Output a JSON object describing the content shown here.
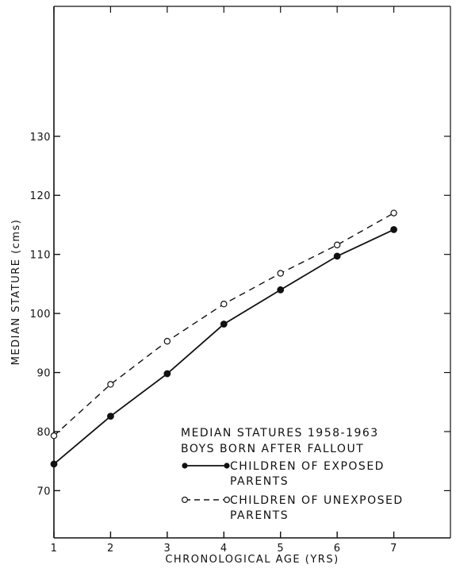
{
  "chart_data": {
    "type": "line",
    "title": "",
    "xlabel": "CHRONOLOGICAL AGE (YRS)",
    "ylabel": "MEDIAN STATURE (cms)",
    "x": [
      1,
      2,
      3,
      4,
      5,
      6,
      7
    ],
    "xticks": [
      "1",
      "2",
      "3",
      "4",
      "5",
      "6",
      "7"
    ],
    "yticks": [
      "70",
      "80",
      "90",
      "100",
      "110",
      "120",
      "130"
    ],
    "xlim": [
      1,
      8
    ],
    "ylim": [
      62,
      152
    ],
    "grid": false,
    "legend_position": "lower-right",
    "legend": {
      "heading_line1": "MEDIAN STATURES 1958-1963",
      "heading_line2": "BOYS BORN AFTER FALLOUT"
    },
    "series": [
      {
        "name_line1": "CHILDREN OF EXPOSED",
        "name_line2": "PARENTS",
        "style": "solid",
        "marker": "filled-circle",
        "values": [
          74.5,
          82.6,
          89.8,
          98.2,
          104.0,
          109.7,
          114.2
        ]
      },
      {
        "name_line1": "CHILDREN OF UNEXPOSED",
        "name_line2": "PARENTS",
        "style": "dashed",
        "marker": "open-circle",
        "values": [
          79.3,
          88.0,
          95.3,
          101.6,
          106.8,
          111.6,
          117.0
        ]
      }
    ]
  }
}
